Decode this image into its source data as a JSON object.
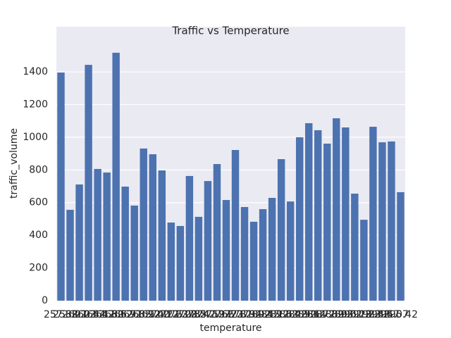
{
  "chart_data": {
    "type": "bar",
    "title": "Traffic vs Temperature",
    "x_label": "temperature",
    "y_label": "traffic_volume",
    "categories": [
      "257.38",
      "258.21",
      "260.03",
      "262.44",
      "263.17",
      "264.80",
      "265.52",
      "266.91",
      "267.35",
      "268.12",
      "269.40",
      "270.27",
      "271.63",
      "272.08",
      "272.85",
      "273.47",
      "274.19",
      "275.66",
      "276.23",
      "277.81",
      "278.34",
      "279.92",
      "280.45",
      "281.17",
      "282.63",
      "283.28",
      "284.90",
      "285.14",
      "286.77",
      "287.39",
      "288.05",
      "289.61",
      "290.28",
      "291.83",
      "292.46",
      "293.57",
      "294.07",
      "295.42"
    ],
    "values": [
      1396,
      556,
      711,
      1443,
      806,
      784,
      1517,
      698,
      582,
      931,
      896,
      797,
      478,
      457,
      763,
      513,
      732,
      836,
      616,
      922,
      573,
      483,
      560,
      629,
      866,
      607,
      1000,
      1086,
      1043,
      961,
      1116,
      1060,
      655,
      495,
      1064,
      969,
      974,
      664
    ],
    "color": "#4c72b0",
    "ylim": [
      0,
      1676
    ],
    "yticks": [
      0,
      200,
      400,
      600,
      800,
      1000,
      1200,
      1400
    ],
    "grid": true
  }
}
